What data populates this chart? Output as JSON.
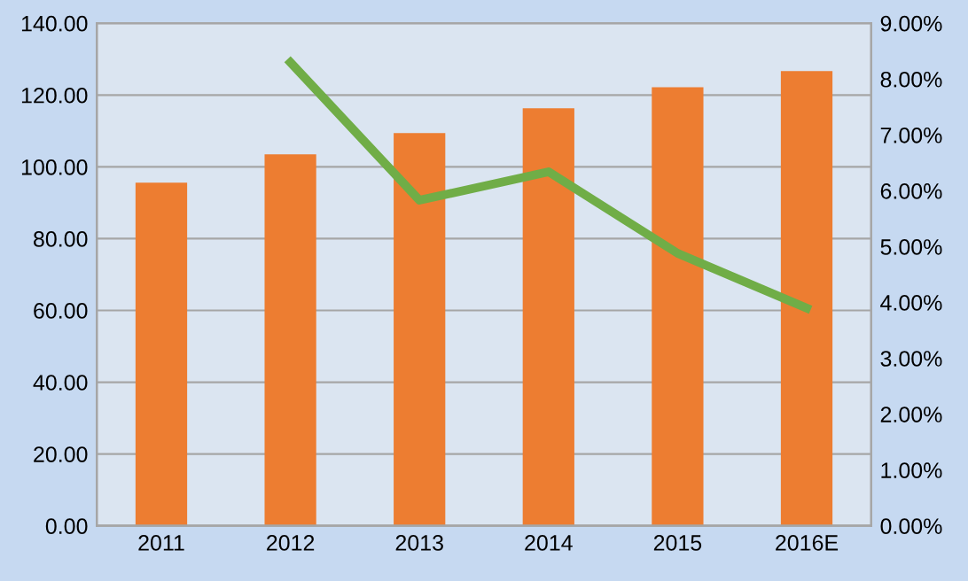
{
  "chart_data": {
    "type": "bar",
    "categories": [
      "2011",
      "2012",
      "2013",
      "2014",
      "2015",
      "2016E"
    ],
    "series": [
      {
        "color": "#ed7d31",
        "values": [
          95.6,
          103.5,
          109.4,
          116.3,
          122.2,
          126.7
        ]
      },
      {
        "type": "line",
        "axis": "y2",
        "color": "#70ad47",
        "values": [
          null,
          8.3,
          5.83,
          6.34,
          4.88,
          3.9
        ]
      }
    ],
    "ylim": [
      0,
      140
    ],
    "yticks": [
      {
        "value": 0,
        "label": "0.00"
      },
      {
        "value": 20,
        "label": "20.00"
      },
      {
        "value": 40,
        "label": "40.00"
      },
      {
        "value": 60,
        "label": "60.00"
      },
      {
        "value": 80,
        "label": "80.00"
      },
      {
        "value": 100,
        "label": "100.00"
      },
      {
        "value": 120,
        "label": "120.00"
      },
      {
        "value": 140,
        "label": "140.00"
      }
    ],
    "y2lim": [
      0,
      9
    ],
    "y2ticks": [
      {
        "value": 0,
        "label": "0.00%"
      },
      {
        "value": 1,
        "label": "1.00%"
      },
      {
        "value": 2,
        "label": "2.00%"
      },
      {
        "value": 3,
        "label": "3.00%"
      },
      {
        "value": 4,
        "label": "4.00%"
      },
      {
        "value": 5,
        "label": "5.00%"
      },
      {
        "value": 6,
        "label": "6.00%"
      },
      {
        "value": 7,
        "label": "7.00%"
      },
      {
        "value": 8,
        "label": "8.00%"
      },
      {
        "value": 9,
        "label": "9.00%"
      }
    ],
    "grid": "y"
  }
}
